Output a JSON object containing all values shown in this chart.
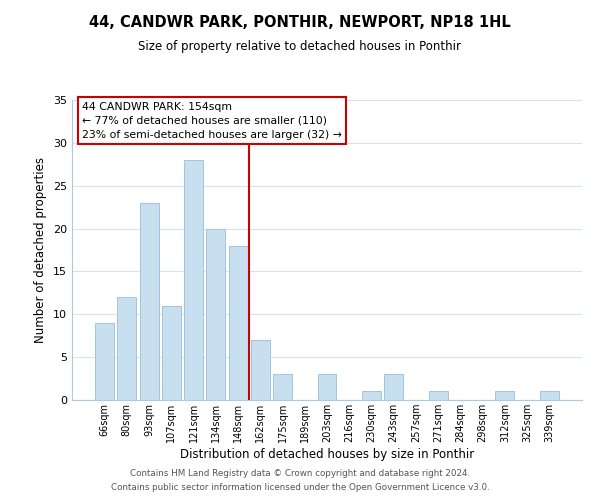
{
  "title": "44, CANDWR PARK, PONTHIR, NEWPORT, NP18 1HL",
  "subtitle": "Size of property relative to detached houses in Ponthir",
  "xlabel": "Distribution of detached houses by size in Ponthir",
  "ylabel": "Number of detached properties",
  "footer1": "Contains HM Land Registry data © Crown copyright and database right 2024.",
  "footer2": "Contains public sector information licensed under the Open Government Licence v3.0.",
  "bar_labels": [
    "66sqm",
    "80sqm",
    "93sqm",
    "107sqm",
    "121sqm",
    "134sqm",
    "148sqm",
    "162sqm",
    "175sqm",
    "189sqm",
    "203sqm",
    "216sqm",
    "230sqm",
    "243sqm",
    "257sqm",
    "271sqm",
    "284sqm",
    "298sqm",
    "312sqm",
    "325sqm",
    "339sqm"
  ],
  "bar_values": [
    9,
    12,
    23,
    11,
    28,
    20,
    18,
    7,
    3,
    0,
    3,
    0,
    1,
    3,
    0,
    1,
    0,
    0,
    1,
    0,
    1
  ],
  "bar_color": "#c8dff0",
  "bar_edge_color": "#a0c4e0",
  "vline_color": "#cc0000",
  "annotation_title": "44 CANDWR PARK: 154sqm",
  "annotation_line1": "← 77% of detached houses are smaller (110)",
  "annotation_line2": "23% of semi-detached houses are larger (32) →",
  "annotation_box_color": "#ffffff",
  "annotation_box_edge": "#cc0000",
  "ylim": [
    0,
    35
  ],
  "yticks": [
    0,
    5,
    10,
    15,
    20,
    25,
    30,
    35
  ],
  "background_color": "#ffffff",
  "grid_color": "#d0e4f5"
}
